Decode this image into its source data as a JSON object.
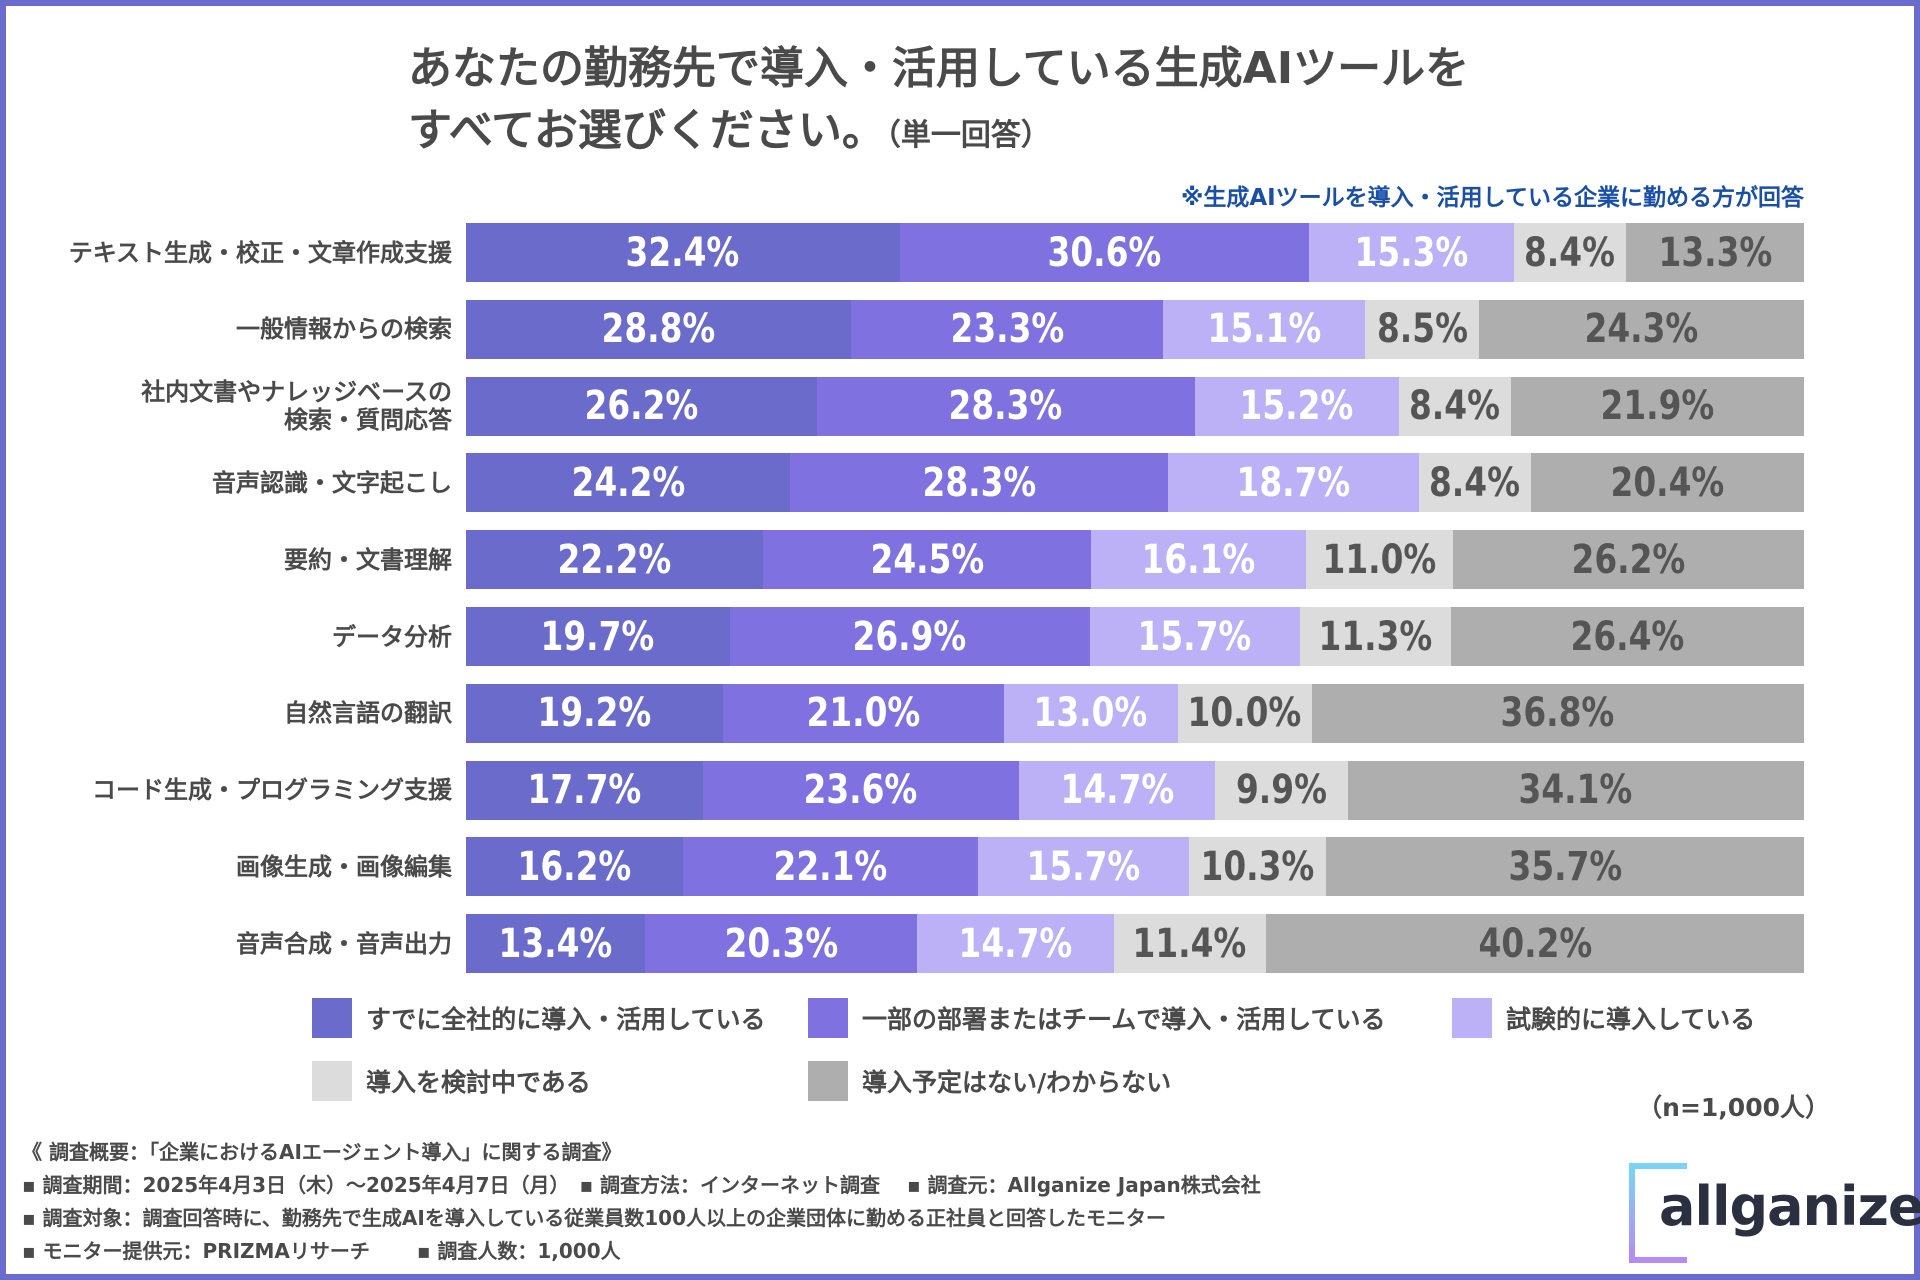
{
  "title": {
    "line1": "あなたの勤務先で導入・活用している生成AIツールを",
    "line2": "すべてお選びください。",
    "line2_suffix": "（単一回答）"
  },
  "note": "※生成AIツールを導入・活用している企業に勤める方が回答",
  "colors": [
    "#6b6bcc",
    "#7f72e0",
    "#bcb0f7",
    "#dcdcdc",
    "#aeaeae"
  ],
  "text_colors": [
    "#ffffff",
    "#ffffff",
    "#ffffff",
    "#555555",
    "#555555"
  ],
  "chart_data": {
    "type": "bar",
    "orientation": "horizontal",
    "stacked": true,
    "unit": "%",
    "categories": [
      "テキスト生成・校正・文章作成支援",
      "一般情報からの検索",
      "社内文書やナレッジベースの\n検索・質問応答",
      "音声認識・文字起こし",
      "要約・文書理解",
      "データ分析",
      "自然言語の翻訳",
      "コード生成・プログラミング支援",
      "画像生成・画像編集",
      "音声合成・音声出力"
    ],
    "series": [
      {
        "name": "すでに全社的に導入・活用している",
        "values": [
          32.4,
          28.8,
          26.2,
          24.2,
          22.2,
          19.7,
          19.2,
          17.7,
          16.2,
          13.4
        ]
      },
      {
        "name": "一部の部署またはチームで導入・活用している",
        "values": [
          30.6,
          23.3,
          28.3,
          28.3,
          24.5,
          26.9,
          21.0,
          23.6,
          22.1,
          20.3
        ]
      },
      {
        "name": "試験的に導入している",
        "values": [
          15.3,
          15.1,
          15.2,
          18.7,
          16.1,
          15.7,
          13.0,
          14.7,
          15.7,
          14.7
        ]
      },
      {
        "name": "導入を検討中である",
        "values": [
          8.4,
          8.5,
          8.4,
          8.4,
          11.0,
          11.3,
          10.0,
          9.9,
          10.3,
          11.4
        ]
      },
      {
        "name": "導入予定はない/わからない",
        "values": [
          13.3,
          24.3,
          21.9,
          20.4,
          26.2,
          26.4,
          36.8,
          34.1,
          35.7,
          40.2
        ]
      }
    ],
    "legend": "bottom"
  },
  "n_label": "（n=1,000人）",
  "footer": [
    "《 調査概要：「企業におけるAIエージェント導入」に関する調査》",
    "▪ 調査期間：2025年4月3日（木）～2025年4月7日（月）　▪ 調査方法：インターネット調査　 ▪ 調査元：Allganize Japan株式会社",
    "▪ 調査対象：調査回答時に、勤務先で生成AIを導入している従業員数100人以上の企業団体に勤める正社員と回答したモニター",
    "▪ モニター提供元：PRIZMAリサーチ　　 ▪ 調査人数：1,000人"
  ],
  "logo": "allganize"
}
